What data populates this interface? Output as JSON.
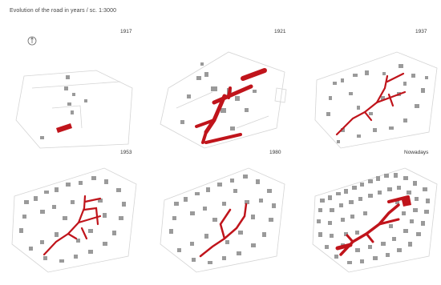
{
  "title": "Evolution of the road in years / sc. 1:3000",
  "north_label": "N",
  "colors": {
    "road": "#c0141b",
    "building": "#9a9a9a",
    "parcel": "#cfcfcf"
  },
  "panels": [
    {
      "year": "1917"
    },
    {
      "year": "1921"
    },
    {
      "year": "1937"
    },
    {
      "year": "1953"
    },
    {
      "year": "1980"
    },
    {
      "year": "Nowadays"
    }
  ]
}
